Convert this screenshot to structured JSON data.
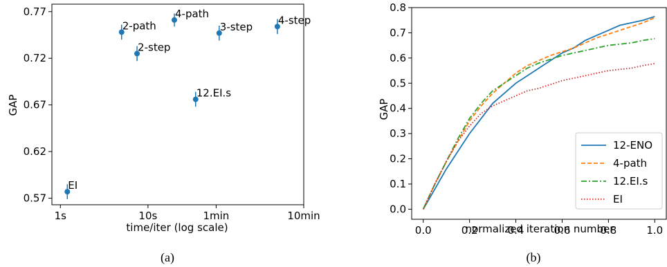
{
  "chart_data": [
    {
      "type": "scatter",
      "caption": "(a)",
      "xlabel": "time/iter (log scale)",
      "ylabel": "GAP",
      "xscale": "log",
      "xlim_seconds": [
        0.8,
        600
      ],
      "ylim": [
        0.563,
        0.778
      ],
      "x_ticks": [
        {
          "value": 1,
          "label": "1s"
        },
        {
          "value": 10,
          "label": "10s"
        },
        {
          "value": 60,
          "label": "1min"
        },
        {
          "value": 600,
          "label": "10min"
        }
      ],
      "y_ticks": [
        {
          "value": 0.57,
          "label": "0.57"
        },
        {
          "value": 0.62,
          "label": "0.62"
        },
        {
          "value": 0.67,
          "label": "0.67"
        },
        {
          "value": 0.72,
          "label": "0.72"
        },
        {
          "value": 0.77,
          "label": "0.77"
        }
      ],
      "grid": false,
      "points": [
        {
          "label": "EI",
          "x": 1.2,
          "y": 0.577,
          "err": 0.008
        },
        {
          "label": "2-path",
          "x": 5.0,
          "y": 0.748,
          "err": 0.008
        },
        {
          "label": "2-step",
          "x": 7.5,
          "y": 0.725,
          "err": 0.008
        },
        {
          "label": "4-path",
          "x": 20,
          "y": 0.761,
          "err": 0.007
        },
        {
          "label": "12.EI.s",
          "x": 35,
          "y": 0.676,
          "err": 0.008
        },
        {
          "label": "3-step",
          "x": 65,
          "y": 0.747,
          "err": 0.008
        },
        {
          "label": "4-step",
          "x": 300,
          "y": 0.754,
          "err": 0.008
        }
      ],
      "color": "#1f77b4"
    },
    {
      "type": "line",
      "caption": "(b)",
      "xlabel": "normalized iteration number",
      "ylabel": "GAP",
      "xlim": [
        -0.05,
        1.05
      ],
      "ylim": [
        -0.04,
        0.8
      ],
      "x_ticks": [
        "0.0",
        "0.2",
        "0.4",
        "0.6",
        "0.8",
        "1.0"
      ],
      "y_ticks": [
        "0.0",
        "0.1",
        "0.2",
        "0.3",
        "0.4",
        "0.5",
        "0.6",
        "0.7",
        "0.8"
      ],
      "grid": false,
      "legend": "bottom-right",
      "x": [
        0.0,
        0.05,
        0.1,
        0.15,
        0.2,
        0.25,
        0.3,
        0.35,
        0.4,
        0.45,
        0.5,
        0.55,
        0.6,
        0.65,
        0.7,
        0.75,
        0.8,
        0.85,
        0.9,
        0.95,
        1.0
      ],
      "series": [
        {
          "name": "12-ENO",
          "color": "#1f77b4",
          "dash": "solid",
          "values": [
            0.0,
            0.08,
            0.16,
            0.23,
            0.3,
            0.36,
            0.42,
            0.46,
            0.5,
            0.53,
            0.56,
            0.59,
            0.62,
            0.64,
            0.67,
            0.69,
            0.71,
            0.73,
            0.74,
            0.75,
            0.765
          ]
        },
        {
          "name": "4-path",
          "color": "#ff7f0e",
          "dash": "dashed",
          "values": [
            0.0,
            0.1,
            0.19,
            0.27,
            0.35,
            0.41,
            0.46,
            0.5,
            0.54,
            0.57,
            0.59,
            0.61,
            0.625,
            0.64,
            0.66,
            0.68,
            0.695,
            0.71,
            0.725,
            0.74,
            0.76
          ]
        },
        {
          "name": "12.EI.s",
          "color": "#2ca02c",
          "dash": "dashdot",
          "values": [
            0.0,
            0.1,
            0.19,
            0.28,
            0.36,
            0.42,
            0.47,
            0.5,
            0.53,
            0.56,
            0.58,
            0.595,
            0.61,
            0.62,
            0.63,
            0.64,
            0.65,
            0.655,
            0.66,
            0.67,
            0.677
          ]
        },
        {
          "name": "EI",
          "color": "#d62728",
          "dash": "dotted",
          "values": [
            0.0,
            0.1,
            0.19,
            0.27,
            0.33,
            0.38,
            0.41,
            0.43,
            0.45,
            0.47,
            0.48,
            0.495,
            0.51,
            0.52,
            0.53,
            0.54,
            0.55,
            0.555,
            0.56,
            0.57,
            0.578
          ]
        }
      ]
    }
  ]
}
